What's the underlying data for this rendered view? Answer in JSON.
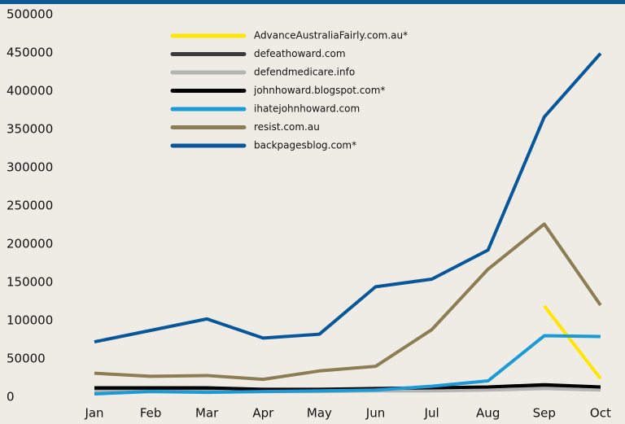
{
  "chart_data": {
    "type": "line",
    "categories": [
      "Jan",
      "Feb",
      "Mar",
      "Apr",
      "May",
      "Jun",
      "Jul",
      "Aug",
      "Sep",
      "Oct"
    ],
    "ylim": [
      0,
      500000
    ],
    "yticks": [
      0,
      50000,
      100000,
      150000,
      200000,
      250000,
      300000,
      350000,
      400000,
      450000,
      500000
    ],
    "grid": false,
    "legend": "top",
    "series": [
      {
        "name": "AdvanceAustraliaFairly.com.au*",
        "color": "#ffe600",
        "values": [
          null,
          null,
          null,
          null,
          null,
          null,
          null,
          null,
          115000,
          20000
        ]
      },
      {
        "name": "defeathoward.com",
        "color": "#3b3b3b",
        "values": [
          6000,
          6000,
          6000,
          5000,
          5000,
          6000,
          6000,
          7000,
          9000,
          7000
        ]
      },
      {
        "name": "defendmedicare.info",
        "color": "#b4b4b4",
        "values": [
          3000,
          3000,
          3000,
          3000,
          3000,
          4000,
          4000,
          5000,
          7000,
          5000
        ]
      },
      {
        "name": "johnhoward.blogspot.com*",
        "color": "#000000",
        "values": [
          8000,
          8000,
          8000,
          6000,
          6000,
          7000,
          8000,
          9000,
          12000,
          9000
        ]
      },
      {
        "name": "ihatejohnhoward.com",
        "color": "#1a9ad6",
        "values": [
          0,
          3000,
          2000,
          3000,
          4000,
          5000,
          10000,
          17000,
          76000,
          75000
        ]
      },
      {
        "name": "resist.com.au",
        "color": "#8c7d55",
        "values": [
          27000,
          23000,
          24000,
          19000,
          30000,
          36000,
          84000,
          163000,
          222000,
          116000
        ]
      },
      {
        "name": "backpagesblog.com*",
        "color": "#08579a",
        "values": [
          68000,
          83000,
          98000,
          73000,
          78000,
          140000,
          150000,
          188000,
          362000,
          445000
        ]
      }
    ]
  }
}
